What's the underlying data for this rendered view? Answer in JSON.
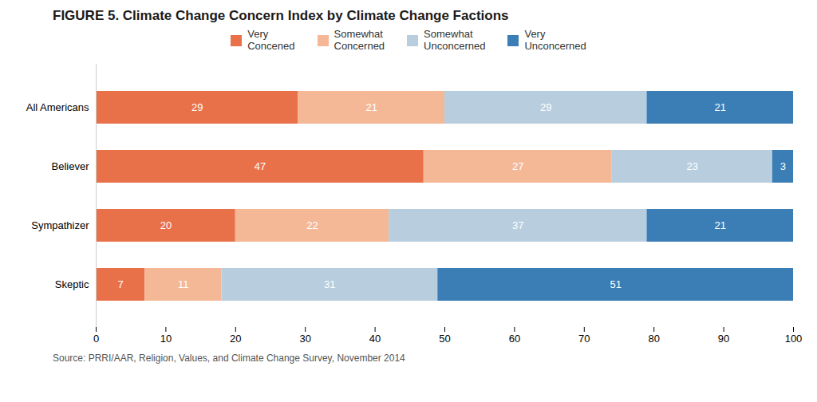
{
  "chart_data": {
    "type": "bar",
    "orientation": "horizontal",
    "stacked": true,
    "title": "FIGURE 5.  Climate Change Concern Index by Climate Change Factions",
    "caption": "Source: PRRI/AAR, Religion, Values, and Climate Change Survey, November 2014",
    "categories": [
      "All Americans",
      "Believer",
      "Sympathizer",
      "Skeptic"
    ],
    "series": [
      {
        "name": "Very\nConcened",
        "color": "#E8714A",
        "values": [
          29,
          47,
          20,
          7
        ]
      },
      {
        "name": "Somewhat\nConcerned",
        "color": "#F4B896",
        "values": [
          21,
          27,
          22,
          11
        ]
      },
      {
        "name": "Somewhat\nUnconcerned",
        "color": "#B8CEDE",
        "values": [
          29,
          23,
          37,
          31
        ]
      },
      {
        "name": "Very\nUnconcerned",
        "color": "#3B7EB5",
        "values": [
          21,
          3,
          21,
          51
        ]
      }
    ],
    "xlim": [
      0,
      100
    ],
    "xticks": [
      0,
      10,
      20,
      30,
      40,
      50,
      60,
      70,
      80,
      90,
      100
    ],
    "data_labels": true,
    "legend": "top",
    "grid": false
  }
}
